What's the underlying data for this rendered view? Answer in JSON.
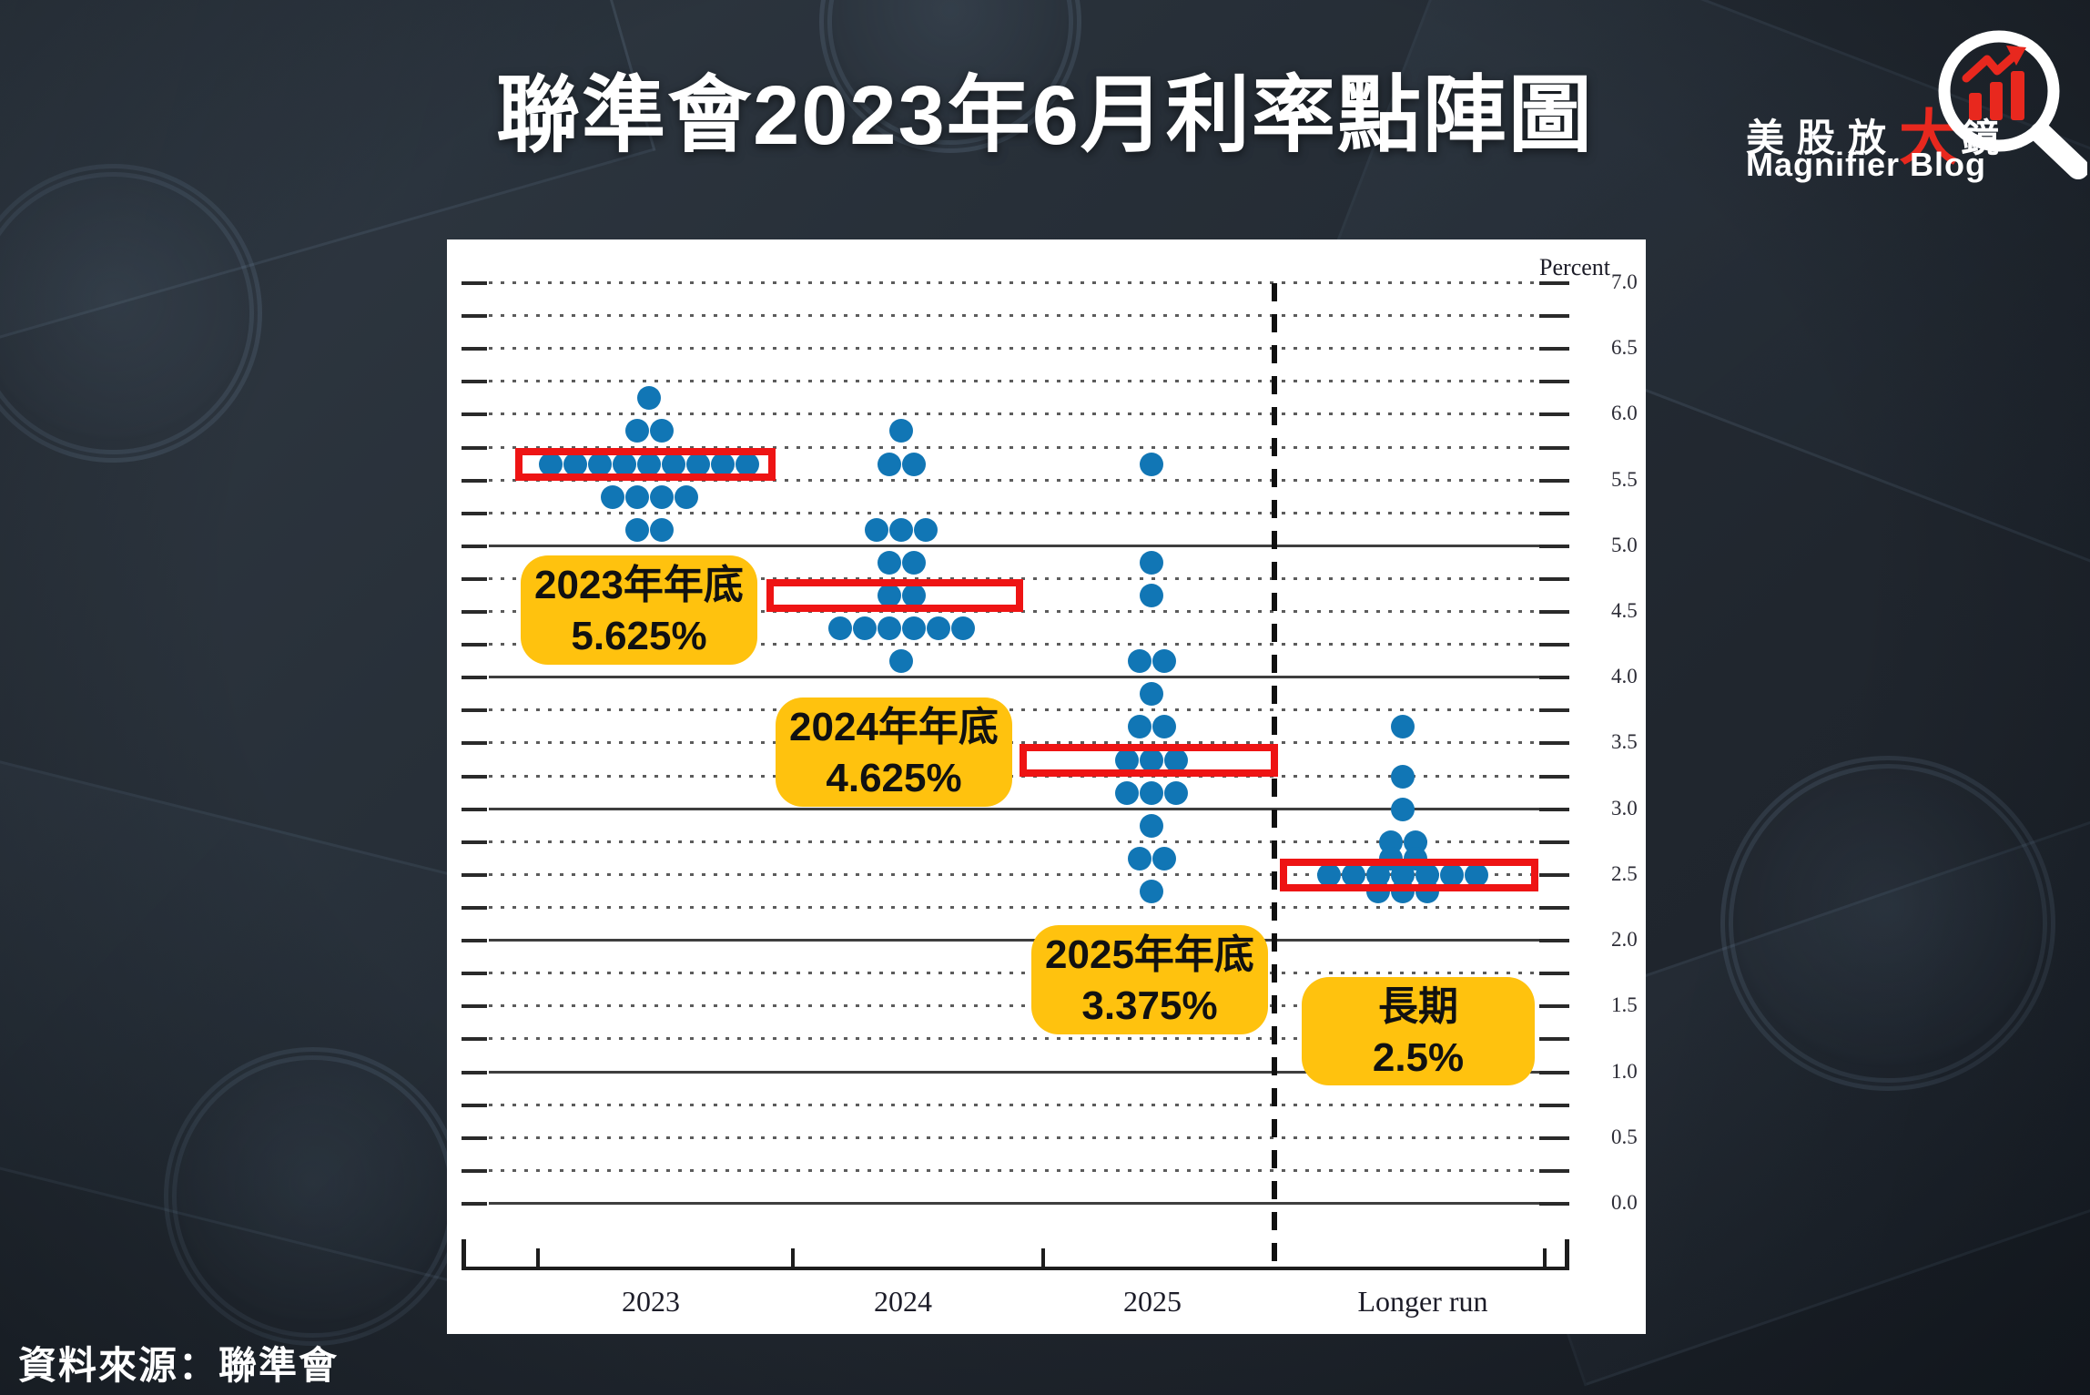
{
  "header": {
    "title": "聯準會2023年6月利率點陣圖"
  },
  "logo": {
    "zh_prefix": "美股放",
    "zh_big": "大",
    "zh_suffix": "鏡",
    "en": "Magnifier Blog"
  },
  "footer": {
    "source": "資料來源：聯準會"
  },
  "chart_data": {
    "type": "scatter",
    "subtype": "fomc-dot-plot",
    "title": "聯準會2023年6月利率點陣圖",
    "y_axis_label": "Percent",
    "ylim": [
      0.0,
      7.0
    ],
    "grid_step": 0.25,
    "grid_on": true,
    "solid_gridlines": [
      0,
      1,
      2,
      3,
      4,
      5
    ],
    "y_tick_labels": [
      "7.0",
      "6.5",
      "6.0",
      "5.5",
      "5.0",
      "4.5",
      "4.0",
      "3.5",
      "3.0",
      "2.5",
      "2.0",
      "1.5",
      "1.0",
      "0.5",
      "0.0"
    ],
    "columns": [
      {
        "id": "2023",
        "label": "2023",
        "median": 5.625,
        "dots": [
          [
            6.125,
            1
          ],
          [
            5.875,
            2
          ],
          [
            5.625,
            9
          ],
          [
            5.375,
            4
          ],
          [
            5.125,
            2
          ]
        ]
      },
      {
        "id": "2024",
        "label": "2024",
        "median": 4.625,
        "dots": [
          [
            5.875,
            1
          ],
          [
            5.625,
            2
          ],
          [
            5.125,
            3
          ],
          [
            4.875,
            2
          ],
          [
            4.625,
            2
          ],
          [
            4.375,
            6
          ],
          [
            4.125,
            1
          ]
        ]
      },
      {
        "id": "2025",
        "label": "2025",
        "median": 3.375,
        "dots": [
          [
            5.625,
            1
          ],
          [
            4.875,
            1
          ],
          [
            4.625,
            1
          ],
          [
            4.125,
            2
          ],
          [
            3.875,
            1
          ],
          [
            3.625,
            2
          ],
          [
            3.375,
            3
          ],
          [
            3.125,
            3
          ],
          [
            2.875,
            1
          ],
          [
            2.625,
            2
          ],
          [
            2.375,
            1
          ]
        ]
      },
      {
        "id": "longer-run",
        "label": "Longer run",
        "median": 2.5,
        "dots": [
          [
            3.625,
            1
          ],
          [
            3.25,
            1
          ],
          [
            3.0,
            1
          ],
          [
            2.75,
            2
          ],
          [
            2.625,
            2
          ],
          [
            2.5,
            7
          ],
          [
            2.375,
            3
          ]
        ]
      }
    ],
    "callouts": [
      {
        "column": "2023",
        "line1": "2023年年底",
        "line2": "5.625%"
      },
      {
        "column": "2024",
        "line1": "2024年年底",
        "line2": "4.625%"
      },
      {
        "column": "2025",
        "line1": "2025年年底",
        "line2": "3.375%"
      },
      {
        "column": "longer-run",
        "line1": "長期",
        "line2": "2.5%"
      }
    ],
    "colors": {
      "dot": "#1176b5",
      "median_box": "#ee1414",
      "callout_bg": "#ffc20e",
      "callout_text": "#111111",
      "logo_red": "#e8281e"
    }
  }
}
